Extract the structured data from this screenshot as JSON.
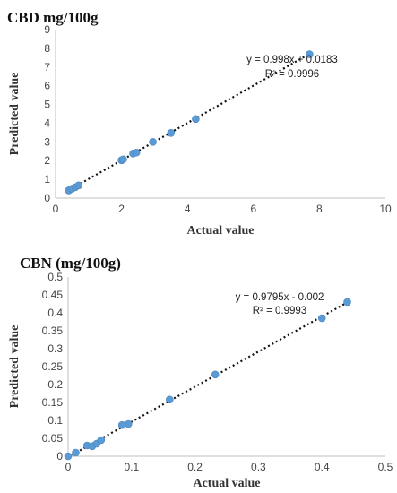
{
  "chart_data": [
    {
      "type": "scatter",
      "title": "CBD mg/100g",
      "xlabel": "Actual value",
      "ylabel": "Predicted value",
      "xlim": [
        0,
        10
      ],
      "ylim": [
        0,
        9
      ],
      "xticks": [
        "0",
        "2",
        "4",
        "6",
        "8",
        "10"
      ],
      "yticks": [
        "0",
        "1",
        "2",
        "3",
        "4",
        "5",
        "6",
        "7",
        "8",
        "9"
      ],
      "grid": false,
      "series": [
        {
          "color": "#5b9bd5",
          "points": [
            [
              0.4,
              0.41
            ],
            [
              0.5,
              0.5
            ],
            [
              0.6,
              0.58
            ],
            [
              0.7,
              0.68
            ],
            [
              2.0,
              2.02
            ],
            [
              2.05,
              2.07
            ],
            [
              2.35,
              2.38
            ],
            [
              2.45,
              2.43
            ],
            [
              2.95,
              3.0
            ],
            [
              3.5,
              3.48
            ],
            [
              4.25,
              4.22
            ],
            [
              7.7,
              7.68
            ]
          ]
        }
      ],
      "trendline": {
        "slope": 0.998,
        "intercept": 0.0183,
        "style": "dotted"
      },
      "annotations": [
        "y = 0.998x + 0.0183",
        "R² = 0.9996"
      ]
    },
    {
      "type": "scatter",
      "title": "CBN (mg/100g)",
      "xlabel": "Actual value",
      "ylabel": "Predicted value",
      "xlim": [
        0,
        0.5
      ],
      "ylim": [
        0,
        0.5
      ],
      "xticks": [
        "0",
        "0.1",
        "0.2",
        "0.3",
        "0.4",
        "0.5"
      ],
      "yticks": [
        "0",
        "0.05",
        "0.1",
        "0.15",
        "0.2",
        "0.25",
        "0.3",
        "0.35",
        "0.4",
        "0.45",
        "0.5"
      ],
      "grid": false,
      "series": [
        {
          "color": "#5b9bd5",
          "points": [
            [
              0.0,
              0.0
            ],
            [
              0.012,
              0.01
            ],
            [
              0.03,
              0.03
            ],
            [
              0.038,
              0.028
            ],
            [
              0.045,
              0.035
            ],
            [
              0.052,
              0.045
            ],
            [
              0.085,
              0.087
            ],
            [
              0.095,
              0.09
            ],
            [
              0.16,
              0.158
            ],
            [
              0.232,
              0.228
            ],
            [
              0.4,
              0.385
            ],
            [
              0.44,
              0.43
            ]
          ]
        }
      ],
      "trendline": {
        "slope": 0.9795,
        "intercept": -0.002,
        "style": "dotted"
      },
      "annotations": [
        "y = 0.9795x - 0.002",
        "R² = 0.9993"
      ]
    }
  ]
}
